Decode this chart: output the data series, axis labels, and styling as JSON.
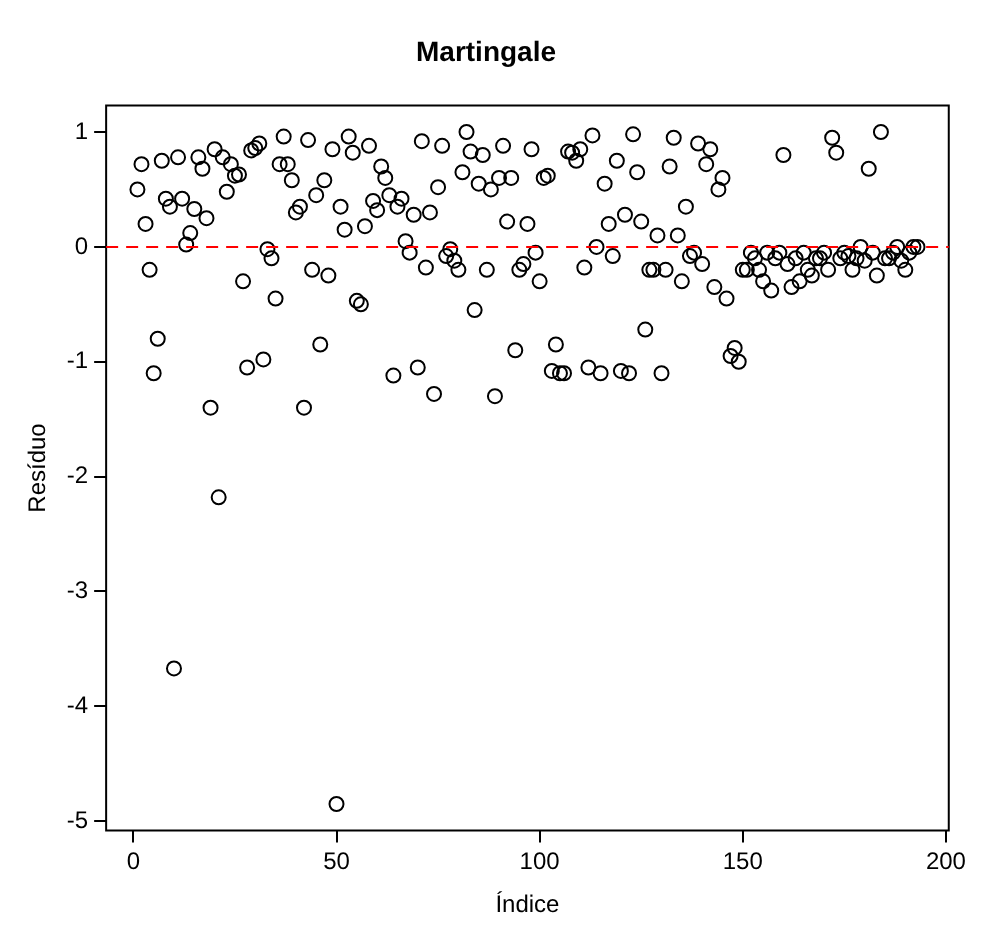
{
  "chart_data": {
    "type": "scatter",
    "title": "Martingale",
    "xlabel": "Índice",
    "ylabel": "Resíduo",
    "x": [
      1,
      2,
      3,
      4,
      5,
      6,
      7,
      8,
      9,
      10,
      11,
      12,
      13,
      14,
      15,
      16,
      17,
      18,
      19,
      20,
      21,
      22,
      23,
      24,
      25,
      26,
      27,
      28,
      29,
      30,
      31,
      32,
      33,
      34,
      35,
      36,
      37,
      38,
      39,
      40,
      41,
      42,
      43,
      44,
      45,
      46,
      47,
      48,
      49,
      50,
      51,
      52,
      53,
      54,
      55,
      56,
      57,
      58,
      59,
      60,
      61,
      62,
      63,
      64,
      65,
      66,
      67,
      68,
      69,
      70,
      71,
      72,
      73,
      74,
      75,
      76,
      77,
      78,
      79,
      80,
      81,
      82,
      83,
      84,
      85,
      86,
      87,
      88,
      89,
      90,
      91,
      92,
      93,
      94,
      95,
      96,
      97,
      98,
      99,
      100,
      101,
      102,
      103,
      104,
      105,
      106,
      107,
      108,
      109,
      110,
      111,
      112,
      113,
      114,
      115,
      116,
      117,
      118,
      119,
      120,
      121,
      122,
      123,
      124,
      125,
      126,
      127,
      128,
      129,
      130,
      131,
      132,
      133,
      134,
      135,
      136,
      137,
      138,
      139,
      140,
      141,
      142,
      143,
      144,
      145,
      146,
      147,
      148,
      149,
      150,
      151,
      152,
      153,
      154,
      155,
      156,
      157,
      158,
      159,
      160,
      161,
      162,
      163,
      164,
      165,
      166,
      167,
      168,
      169,
      170,
      171,
      172,
      173,
      174,
      175,
      176,
      177,
      178,
      179,
      180,
      181,
      182,
      183,
      184,
      185,
      186,
      187,
      188,
      189,
      190,
      191,
      192,
      193
    ],
    "series": [
      {
        "color": "#000000",
        "values": [
          0.5,
          0.72,
          0.2,
          -0.2,
          -1.1,
          -0.8,
          0.75,
          0.42,
          0.35,
          -3.67,
          0.78,
          0.42,
          0.02,
          0.12,
          0.33,
          0.78,
          0.68,
          0.25,
          -1.4,
          0.85,
          -2.18,
          0.78,
          0.48,
          0.72,
          0.62,
          0.63,
          -0.3,
          -1.05,
          0.84,
          0.86,
          0.9,
          -0.98,
          -0.02,
          -0.1,
          -0.45,
          0.72,
          0.96,
          0.72,
          0.58,
          0.3,
          0.35,
          -1.4,
          0.93,
          -0.2,
          0.45,
          -0.85,
          0.58,
          -0.25,
          0.85,
          -4.85,
          0.35,
          0.15,
          0.96,
          0.82,
          -0.47,
          -0.5,
          0.18,
          0.88,
          0.4,
          0.32,
          0.7,
          0.6,
          0.45,
          -1.12,
          0.35,
          0.42,
          0.05,
          -0.05,
          0.28,
          -1.05,
          0.92,
          -0.18,
          0.3,
          -1.28,
          0.52,
          0.88,
          -0.08,
          -0.02,
          -0.12,
          -0.2,
          0.65,
          1.0,
          0.83,
          -0.55,
          0.55,
          0.8,
          -0.2,
          0.5,
          -1.3,
          0.6,
          0.88,
          0.22,
          0.6,
          -0.9,
          -0.2,
          -0.15,
          0.2,
          0.85,
          -0.05,
          -0.3,
          0.6,
          0.62,
          -1.08,
          -0.85,
          -1.1,
          -1.1,
          0.83,
          0.82,
          0.75,
          0.85,
          -0.18,
          -1.05,
          0.97,
          0.0,
          -1.1,
          0.55,
          0.2,
          -0.08,
          0.75,
          -1.08,
          0.28,
          -1.1,
          0.98,
          0.65,
          0.22,
          -0.72,
          -0.2,
          -0.2,
          0.1,
          -1.1,
          -0.2,
          0.7,
          0.95,
          0.1,
          -0.3,
          0.35,
          -0.08,
          -0.05,
          0.9,
          -0.15,
          0.72,
          0.85,
          -0.35,
          0.5,
          0.6,
          -0.45,
          -0.95,
          -0.88,
          -1.0,
          -0.2,
          -0.2,
          -0.05,
          -0.1,
          -0.2,
          -0.3,
          -0.05,
          -0.38,
          -0.1,
          -0.05,
          0.8,
          -0.15,
          -0.35,
          -0.1,
          -0.3,
          -0.05,
          -0.2,
          -0.25,
          -0.1,
          -0.1,
          -0.05,
          -0.2,
          0.95,
          0.82,
          -0.1,
          -0.05,
          -0.08,
          -0.2,
          -0.1,
          0.0,
          -0.12,
          0.68,
          -0.05,
          -0.25,
          1.0,
          -0.1,
          -0.1,
          -0.05,
          0.0,
          -0.12,
          -0.2,
          -0.05,
          0.0,
          0.0
        ]
      }
    ],
    "marker": "circle",
    "xlim": [
      -6.7,
      200.7
    ],
    "ylim": [
      -5.08,
      1.23
    ],
    "xticks": [
      0,
      50,
      100,
      150,
      200
    ],
    "yticks": [
      -5,
      -4,
      -3,
      -2,
      -1,
      0,
      1
    ],
    "ref_lines": [
      {
        "axis": "y",
        "value": 0,
        "color": "#ff0000",
        "line_style": "dashed"
      }
    ],
    "grid": false,
    "legend": false
  }
}
